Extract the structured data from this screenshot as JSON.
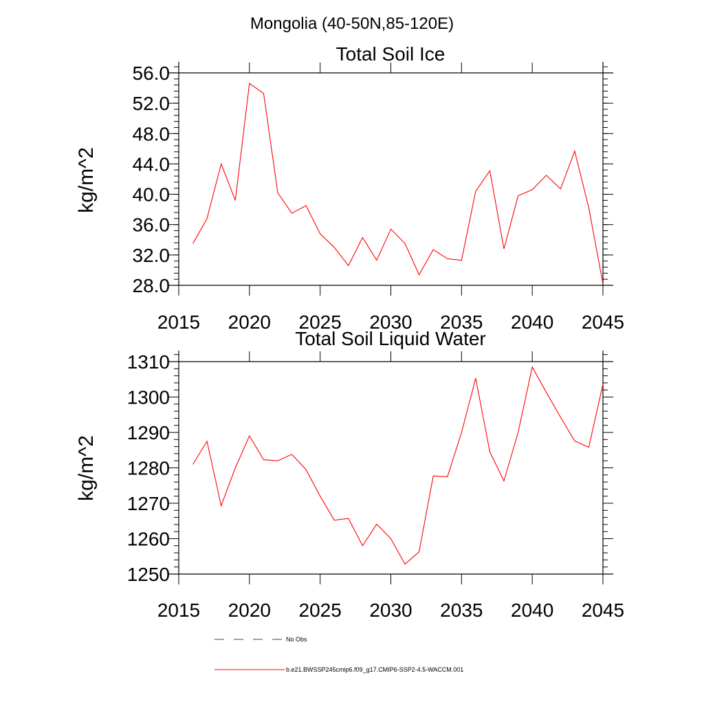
{
  "figure": {
    "title": "Mongolia (40-50N,85-120E)"
  },
  "chart_data": [
    {
      "type": "line",
      "title": "Total Soil Ice",
      "xlabel": "",
      "ylabel": "kg/m^2",
      "xlim": [
        2015,
        2045
      ],
      "ylim": [
        28,
        57
      ],
      "x_ticks": [
        2015,
        2020,
        2025,
        2030,
        2035,
        2040,
        2045
      ],
      "x_tick_labels": [
        "2015",
        "2020",
        "2025",
        "2030",
        "2035",
        "2040",
        "2045"
      ],
      "y_ticks": [
        28,
        32,
        36,
        40,
        44,
        48,
        52,
        56
      ],
      "y_tick_labels": [
        "28.0",
        "32.0",
        "36.0",
        "40.0",
        "44.0",
        "48.0",
        "52.0",
        "56.0"
      ],
      "grid": false,
      "series": [
        {
          "name": "b.e21.BWSSP245cmip6.f09_g17.CMIP6-SSP2-4.5-WACCM.001",
          "color": "#ff0000",
          "x": [
            2016,
            2017,
            2018,
            2019,
            2020,
            2021,
            2022,
            2023,
            2024,
            2025,
            2026,
            2027,
            2028,
            2029,
            2030,
            2031,
            2032,
            2033,
            2034,
            2035,
            2036,
            2037,
            2038,
            2039,
            2040,
            2041,
            2042,
            2043,
            2044,
            2045
          ],
          "y": [
            33.5,
            36.8,
            44.0,
            39.2,
            54.6,
            53.3,
            40.2,
            37.5,
            38.5,
            34.8,
            33.0,
            30.6,
            34.3,
            31.3,
            35.4,
            33.5,
            29.4,
            32.7,
            31.5,
            31.3,
            40.4,
            43.1,
            32.8,
            39.8,
            40.6,
            42.5,
            40.7,
            45.7,
            38.2,
            28.2
          ]
        }
      ]
    },
    {
      "type": "line",
      "title": "Total Soil Liquid Water",
      "xlabel": "",
      "ylabel": "kg/m^2",
      "xlim": [
        2015,
        2045
      ],
      "ylim": [
        1250,
        1313
      ],
      "x_ticks": [
        2015,
        2020,
        2025,
        2030,
        2035,
        2040,
        2045
      ],
      "x_tick_labels": [
        "2015",
        "2020",
        "2025",
        "2030",
        "2035",
        "2040",
        "2045"
      ],
      "y_ticks": [
        1250,
        1260,
        1270,
        1280,
        1290,
        1300,
        1310
      ],
      "y_tick_labels": [
        "1250",
        "1260",
        "1270",
        "1280",
        "1290",
        "1300",
        "1310"
      ],
      "grid": false,
      "series": [
        {
          "name": "b.e21.BWSSP245cmip6.f09_g17.CMIP6-SSP2-4.5-WACCM.001",
          "color": "#ff0000",
          "x": [
            2016,
            2017,
            2018,
            2019,
            2020,
            2021,
            2022,
            2023,
            2024,
            2025,
            2026,
            2027,
            2028,
            2029,
            2030,
            2031,
            2032,
            2033,
            2034,
            2035,
            2036,
            2037,
            2038,
            2039,
            2040,
            2041,
            2042,
            2043,
            2044,
            2045
          ],
          "y": [
            1281.0,
            1287.5,
            1269.3,
            1280.0,
            1289.0,
            1282.3,
            1282.0,
            1283.8,
            1279.5,
            1272.0,
            1265.2,
            1265.7,
            1258.0,
            1264.1,
            1260.0,
            1252.8,
            1256.3,
            1277.7,
            1277.5,
            1290.0,
            1305.3,
            1284.5,
            1276.3,
            1290.0,
            1308.5,
            1301.3,
            1294.3,
            1287.6,
            1285.8,
            1303.6
          ]
        }
      ]
    }
  ],
  "legend": {
    "items": [
      {
        "label": "No Obs",
        "color": "#3a3a7a",
        "style": "dashed"
      },
      {
        "label": "b.e21.BWSSP245cmip6.f09_g17.CMIP6-SSP2-4.5-WACCM.001",
        "color": "#ff0000",
        "style": "solid"
      }
    ]
  }
}
